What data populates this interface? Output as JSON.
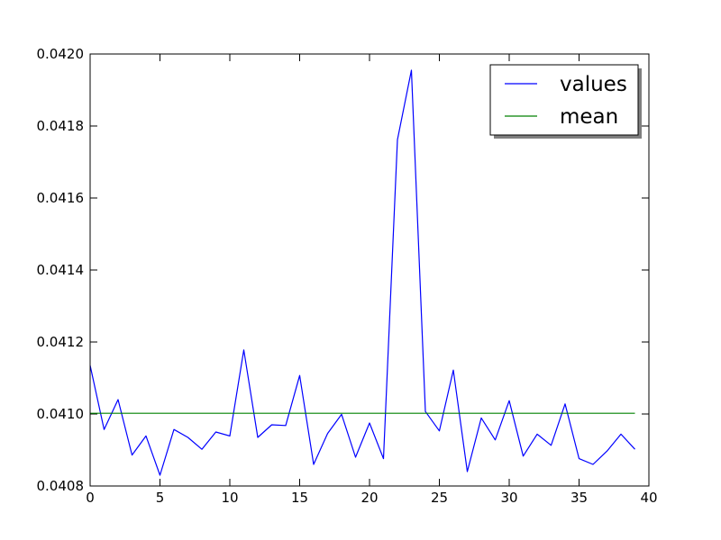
{
  "chart_data": {
    "type": "line",
    "title": "",
    "xlabel": "",
    "ylabel": "",
    "xlim": [
      0,
      40
    ],
    "ylim": [
      0.0408,
      0.042
    ],
    "x_ticks": [
      0,
      5,
      10,
      15,
      20,
      25,
      30,
      35,
      40
    ],
    "x_tick_labels": [
      "0",
      "5",
      "10",
      "15",
      "20",
      "25",
      "30",
      "35",
      "40"
    ],
    "y_ticks": [
      0.0408,
      0.041,
      0.0412,
      0.0414,
      0.0416,
      0.0418,
      0.042
    ],
    "y_tick_labels": [
      "0.0408",
      "0.0410",
      "0.0412",
      "0.0414",
      "0.0416",
      "0.0418",
      "0.0420"
    ],
    "grid": false,
    "legend_position": "top-right",
    "series": [
      {
        "name": "values",
        "color": "#0000ff",
        "x": [
          0,
          1,
          2,
          3,
          4,
          5,
          6,
          7,
          8,
          9,
          10,
          11,
          12,
          13,
          14,
          15,
          16,
          17,
          18,
          19,
          20,
          21,
          22,
          23,
          24,
          25,
          26,
          27,
          28,
          29,
          30,
          31,
          32,
          33,
          34,
          35,
          36,
          37,
          38,
          39
        ],
        "values": [
          0.041135,
          0.040957,
          0.04104,
          0.040886,
          0.040939,
          0.04083,
          0.040957,
          0.040935,
          0.040902,
          0.04095,
          0.040939,
          0.041178,
          0.040935,
          0.04097,
          0.040968,
          0.041107,
          0.04086,
          0.040946,
          0.040999,
          0.04088,
          0.040975,
          0.040876,
          0.041762,
          0.041955,
          0.041007,
          0.040953,
          0.041122,
          0.04084,
          0.040989,
          0.040928,
          0.041037,
          0.040883,
          0.040944,
          0.040913,
          0.041028,
          0.040876,
          0.04086,
          0.040897,
          0.040944,
          0.040902
        ]
      },
      {
        "name": "mean",
        "color": "#008000",
        "x": [
          0,
          39
        ],
        "values": [
          0.041002,
          0.041002
        ]
      }
    ]
  }
}
